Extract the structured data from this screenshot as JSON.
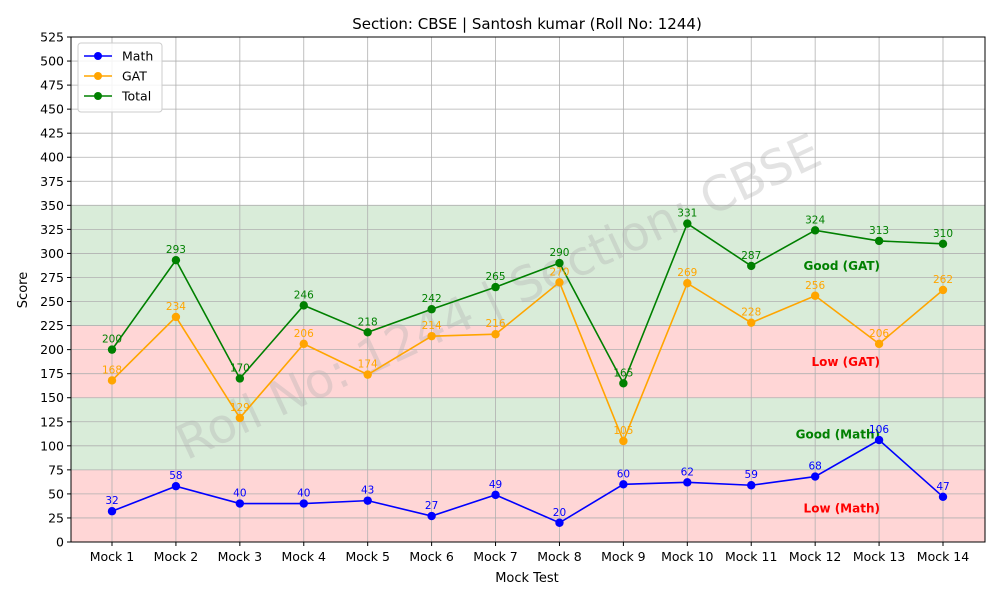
{
  "chart_data": {
    "type": "line",
    "title": "Section: CBSE | Santosh kumar (Roll No: 1244)",
    "xlabel": "Mock Test",
    "ylabel": "Score",
    "ylim": [
      0,
      525
    ],
    "ytick_step": 25,
    "grid": true,
    "legend_position": "top-left",
    "watermark": "Roll No: 1244 | Section: CBSE",
    "categories": [
      "Mock 1",
      "Mock 2",
      "Mock 3",
      "Mock 4",
      "Mock 5",
      "Mock 6",
      "Mock 7",
      "Mock 8",
      "Mock 9",
      "Mock 10",
      "Mock 11",
      "Mock 12",
      "Mock 13",
      "Mock 14"
    ],
    "series": [
      {
        "name": "Math",
        "color": "#0000ff",
        "values": [
          32,
          58,
          40,
          40,
          43,
          27,
          49,
          20,
          60,
          62,
          59,
          68,
          106,
          47
        ]
      },
      {
        "name": "GAT",
        "color": "#ffa500",
        "values": [
          168,
          234,
          129,
          206,
          174,
          214,
          216,
          270,
          105,
          269,
          228,
          256,
          206,
          262
        ]
      },
      {
        "name": "Total",
        "color": "#008000",
        "values": [
          200,
          293,
          170,
          246,
          218,
          242,
          265,
          290,
          165,
          331,
          287,
          324,
          313,
          310
        ]
      }
    ],
    "bands": [
      {
        "from": 0,
        "to": 75,
        "color": "#ffd6d6",
        "label": "Low (Math)",
        "label_color": "#ff0000",
        "label_y": 35
      },
      {
        "from": 75,
        "to": 150,
        "color": "#d9ecd9",
        "label": "Good (Math)",
        "label_color": "#008000",
        "label_y": 112
      },
      {
        "from": 150,
        "to": 225,
        "color": "#ffd6d6",
        "label": "Low (GAT)",
        "label_color": "#ff0000",
        "label_y": 187
      },
      {
        "from": 225,
        "to": 350,
        "color": "#d9ecd9",
        "label": "Good (GAT)",
        "label_color": "#008000",
        "label_y": 287
      }
    ]
  }
}
